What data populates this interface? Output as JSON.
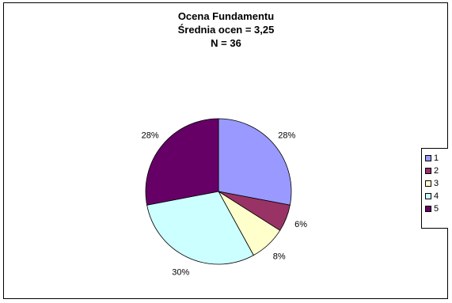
{
  "chart_data": {
    "type": "pie",
    "title_lines": [
      "Ocena Fundamentu",
      "Średnia ocen = 3,25",
      "N = 36"
    ],
    "categories": [
      "1",
      "2",
      "3",
      "4",
      "5"
    ],
    "values": [
      28,
      6,
      8,
      30,
      28
    ],
    "data_labels": [
      "28%",
      "6%",
      "8%",
      "30%",
      "28%"
    ],
    "colors": [
      "#9999FF",
      "#993366",
      "#FFFFCC",
      "#CCFFFF",
      "#660066"
    ],
    "start_angle_deg": 0,
    "direction": "clockwise",
    "legend_position": "right"
  }
}
